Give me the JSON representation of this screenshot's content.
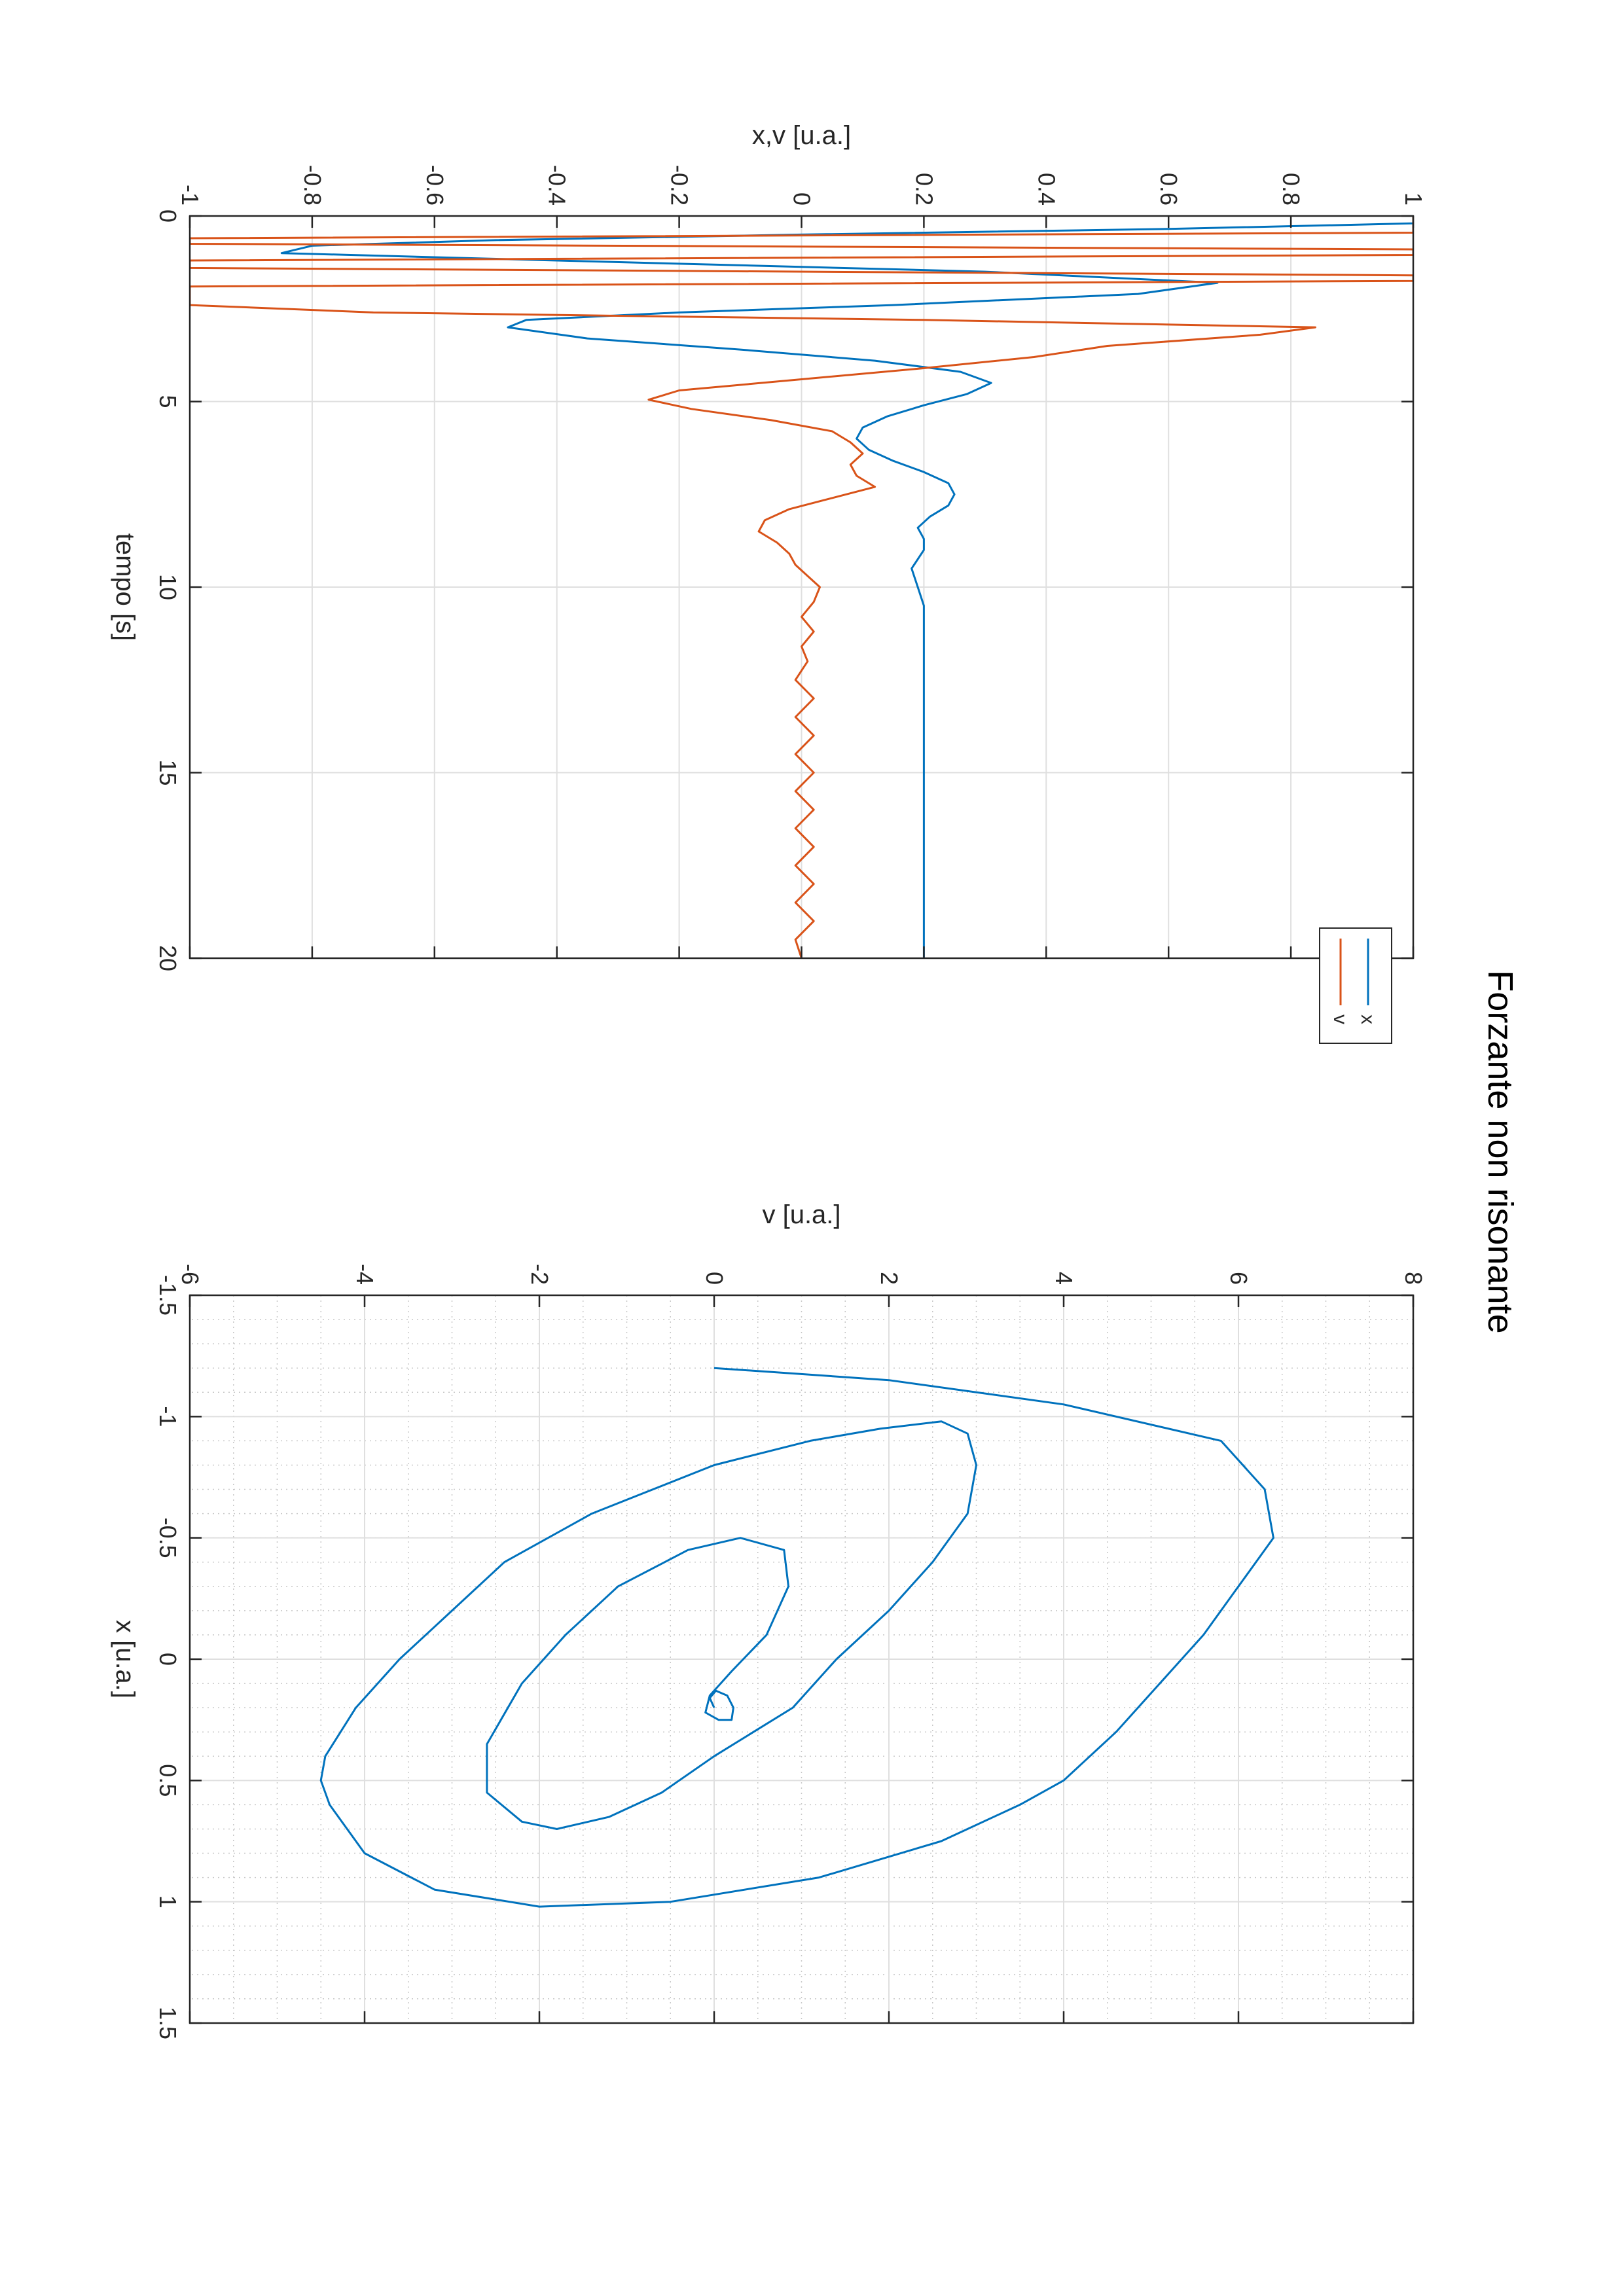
{
  "figure": {
    "title": "Forzante non risonante"
  },
  "colors": {
    "x_series": "#0072BD",
    "v_series": "#D95319",
    "axis": "#262626",
    "grid": "#dfdfdf",
    "minor_grid": "#c8c8c8"
  },
  "chart_data": [
    {
      "type": "line",
      "xlabel": "tempo [s]",
      "ylabel": "x,v [u.a.]",
      "xlim": [
        0,
        20
      ],
      "ylim": [
        -1,
        1
      ],
      "xticks": [
        0,
        5,
        10,
        15,
        20
      ],
      "xtick_labels": [
        "0",
        "5",
        "10",
        "15",
        "20"
      ],
      "yticks": [
        -1,
        -0.8,
        -0.6,
        -0.4,
        -0.2,
        0,
        0.2,
        0.4,
        0.6,
        0.8,
        1
      ],
      "ytick_labels": [
        "-1",
        "-0.8",
        "-0.6",
        "-0.4",
        "-0.2",
        "0",
        "0.2",
        "0.4",
        "0.6",
        "0.8",
        "1"
      ],
      "grid": true,
      "legend": "top-right",
      "series": [
        {
          "name": "x",
          "x": [
            0,
            0.2,
            0.35,
            0.5,
            0.65,
            0.8,
            1.0,
            1.2,
            1.5,
            1.8,
            2.1,
            2.4,
            2.6,
            2.8,
            3.0,
            3.3,
            3.6,
            3.9,
            4.2,
            4.5,
            4.8,
            5.1,
            5.4,
            5.7,
            6.0,
            6.3,
            6.6,
            6.9,
            7.2,
            7.5,
            7.8,
            8.1,
            8.4,
            8.7,
            9.0,
            9.5,
            10.0,
            10.5,
            11.0,
            12.0,
            13.0,
            14.0,
            15.0,
            16.0,
            17.0,
            18.0,
            19.0,
            20.0
          ],
          "y": [
            1.0,
            1.0,
            0.6,
            0.0,
            -0.5,
            -0.8,
            -0.85,
            -0.4,
            0.3,
            0.68,
            0.55,
            0.15,
            -0.2,
            -0.45,
            -0.48,
            -0.35,
            -0.1,
            0.12,
            0.26,
            0.31,
            0.27,
            0.2,
            0.14,
            0.1,
            0.09,
            0.11,
            0.15,
            0.2,
            0.24,
            0.25,
            0.24,
            0.21,
            0.19,
            0.2,
            0.2,
            0.18,
            0.19,
            0.2,
            0.2,
            0.2,
            0.2,
            0.2,
            0.2,
            0.2,
            0.2,
            0.2,
            0.2,
            0.2
          ]
        },
        {
          "name": "v",
          "x": [
            0,
            0.25,
            0.45,
            0.6,
            0.75,
            0.9,
            1.05,
            1.2,
            1.4,
            1.6,
            1.75,
            1.9,
            2.05,
            2.2,
            2.4,
            2.6,
            2.8,
            3.0,
            3.2,
            3.5,
            3.8,
            4.1,
            4.4,
            4.7,
            4.95,
            5.2,
            5.5,
            5.8,
            6.1,
            6.4,
            6.7,
            7.0,
            7.3,
            7.6,
            7.9,
            8.2,
            8.5,
            8.8,
            9.1,
            9.4,
            9.7,
            10.0,
            10.4,
            10.8,
            11.2,
            11.6,
            12.0,
            12.5,
            13.0,
            13.5,
            14.0,
            14.5,
            15.0,
            15.5,
            16.0,
            16.5,
            17.0,
            17.5,
            18.0,
            18.5,
            19.0,
            19.5,
            20.0
          ],
          "y": [
            1.0,
            1.0,
            1.0,
            -1.0,
            -1.0,
            1.0,
            1.0,
            -1.0,
            -1.0,
            1.0,
            1.0,
            -1.0,
            -1.0,
            -1.0,
            -1.0,
            -0.7,
            0.2,
            0.84,
            0.75,
            0.5,
            0.38,
            0.2,
            0.0,
            -0.2,
            -0.25,
            -0.18,
            -0.05,
            0.05,
            0.08,
            0.1,
            0.08,
            0.09,
            0.12,
            0.05,
            -0.02,
            -0.06,
            -0.07,
            -0.04,
            -0.02,
            -0.01,
            0.01,
            0.03,
            0.02,
            0.0,
            0.02,
            0.0,
            0.01,
            -0.01,
            0.02,
            -0.01,
            0.02,
            -0.01,
            0.02,
            -0.01,
            0.02,
            -0.01,
            0.02,
            -0.01,
            0.02,
            -0.01,
            0.02,
            -0.01,
            0.0
          ]
        }
      ]
    },
    {
      "type": "line",
      "xlabel": "x [u.a.]",
      "ylabel": "v [u.a.]",
      "xlim": [
        -1.5,
        1.5
      ],
      "ylim": [
        -6,
        8
      ],
      "xticks": [
        -1.5,
        -1,
        -0.5,
        0,
        0.5,
        1,
        1.5
      ],
      "xtick_labels": [
        "-1.5",
        "-1",
        "-0.5",
        "0",
        "0.5",
        "1",
        "1.5"
      ],
      "yticks": [
        -6,
        -4,
        -2,
        0,
        2,
        4,
        6,
        8
      ],
      "ytick_labels": [
        "-6",
        "-4",
        "-2",
        "0",
        "2",
        "4",
        "6",
        "8"
      ],
      "grid": true,
      "minor_grid": true,
      "series": [
        {
          "x": [
            -1.2,
            -1.15,
            -1.05,
            -0.9,
            -0.7,
            -0.5,
            -0.3,
            -0.1,
            0.1,
            0.3,
            0.5,
            0.6,
            0.75,
            0.9,
            1.0,
            1.02,
            0.95,
            0.8,
            0.6,
            0.5,
            0.4,
            0.2,
            0.0,
            -0.2,
            -0.4,
            -0.6,
            -0.8,
            -0.9,
            -0.95,
            -0.98,
            -0.93,
            -0.8,
            -0.6,
            -0.4,
            -0.2,
            0.0,
            0.2,
            0.4,
            0.55,
            0.65,
            0.7,
            0.67,
            0.55,
            0.35,
            0.1,
            -0.1,
            -0.3,
            -0.45,
            -0.5,
            -0.45,
            -0.3,
            -0.1,
            0.05,
            0.15,
            0.22,
            0.25,
            0.25,
            0.2,
            0.15,
            0.13,
            0.16,
            0.2,
            0.2
          ],
          "y": [
            0.0,
            2.0,
            4.0,
            5.8,
            6.3,
            6.4,
            6.0,
            5.6,
            5.1,
            4.6,
            4.0,
            3.5,
            2.6,
            1.2,
            -0.5,
            -2.0,
            -3.2,
            -4.0,
            -4.4,
            -4.5,
            -4.45,
            -4.1,
            -3.6,
            -3.0,
            -2.4,
            -1.4,
            0.0,
            1.1,
            1.9,
            2.6,
            2.9,
            3.0,
            2.9,
            2.5,
            2.0,
            1.4,
            0.9,
            0.0,
            -0.6,
            -1.2,
            -1.8,
            -2.2,
            -2.6,
            -2.6,
            -2.2,
            -1.7,
            -1.1,
            -0.3,
            0.3,
            0.8,
            0.85,
            0.6,
            0.2,
            -0.05,
            -0.1,
            0.05,
            0.2,
            0.22,
            0.15,
            0.02,
            -0.05,
            0.0,
            0.0
          ]
        }
      ]
    }
  ]
}
